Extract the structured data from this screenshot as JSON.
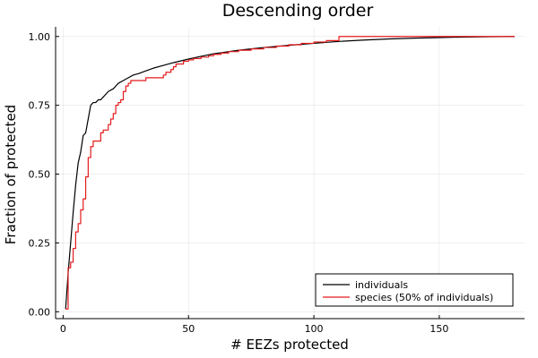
{
  "chart_data": {
    "type": "line",
    "title": "Descending order",
    "xlabel": "# EEZs protected",
    "ylabel": "Fraction of protected",
    "xlim": [
      -3,
      184
    ],
    "ylim": [
      -0.025,
      1.035
    ],
    "xticks": [
      0,
      50,
      100,
      150
    ],
    "xtick_labels": [
      "0",
      "50",
      "100",
      "150"
    ],
    "yticks": [
      0,
      0.25,
      0.5,
      0.75,
      1.0
    ],
    "ytick_labels": [
      "0.00",
      "0.25",
      "0.50",
      "0.75",
      "1.00"
    ],
    "grid": true,
    "legend_position": "bottom-right",
    "series": [
      {
        "name": "individuals",
        "color": "#000000",
        "step": false,
        "x": [
          1,
          2,
          3,
          4,
          5,
          6,
          7,
          8,
          9,
          10,
          11,
          12,
          13,
          14,
          15,
          16,
          17,
          18,
          20,
          22,
          24,
          26,
          28,
          30,
          33,
          36,
          40,
          44,
          50,
          55,
          60,
          70,
          80,
          90,
          100,
          110,
          120,
          130,
          140,
          150,
          160,
          170,
          180
        ],
        "y": [
          0.01,
          0.14,
          0.25,
          0.36,
          0.46,
          0.54,
          0.58,
          0.64,
          0.65,
          0.7,
          0.75,
          0.76,
          0.76,
          0.77,
          0.77,
          0.78,
          0.79,
          0.8,
          0.81,
          0.83,
          0.84,
          0.85,
          0.86,
          0.865,
          0.875,
          0.885,
          0.895,
          0.905,
          0.918,
          0.928,
          0.937,
          0.95,
          0.96,
          0.968,
          0.975,
          0.982,
          0.987,
          0.991,
          0.994,
          0.996,
          0.998,
          0.999,
          1.0
        ]
      },
      {
        "name": "species (50% of individuals)",
        "color": "#e31a1c",
        "step": true,
        "x": [
          1,
          2,
          3,
          4,
          5,
          6,
          7,
          8,
          9,
          10,
          11,
          12,
          13,
          14,
          15,
          16,
          17,
          18,
          19,
          20,
          21,
          22,
          23,
          24,
          25,
          26,
          27,
          28,
          29,
          30,
          31,
          32,
          33,
          34,
          35,
          36,
          38,
          40,
          41,
          42,
          43,
          44,
          45,
          46,
          48,
          50,
          52,
          55,
          58,
          60,
          63,
          66,
          70,
          75,
          80,
          85,
          90,
          95,
          100,
          105,
          110,
          115,
          120,
          125,
          130,
          140,
          150,
          160,
          170,
          180
        ],
        "y": [
          0.01,
          0.16,
          0.18,
          0.23,
          0.29,
          0.32,
          0.37,
          0.41,
          0.49,
          0.56,
          0.6,
          0.62,
          0.62,
          0.62,
          0.65,
          0.66,
          0.66,
          0.68,
          0.7,
          0.72,
          0.75,
          0.76,
          0.77,
          0.8,
          0.82,
          0.83,
          0.84,
          0.84,
          0.84,
          0.84,
          0.84,
          0.84,
          0.85,
          0.85,
          0.85,
          0.85,
          0.85,
          0.86,
          0.87,
          0.87,
          0.88,
          0.89,
          0.9,
          0.9,
          0.91,
          0.915,
          0.92,
          0.925,
          0.93,
          0.935,
          0.94,
          0.945,
          0.95,
          0.955,
          0.96,
          0.965,
          0.97,
          0.975,
          0.98,
          0.985,
          1.0,
          1.0,
          1.0,
          1.0,
          1.0,
          1.0,
          1.0,
          1.0,
          1.0,
          1.0
        ]
      }
    ]
  }
}
